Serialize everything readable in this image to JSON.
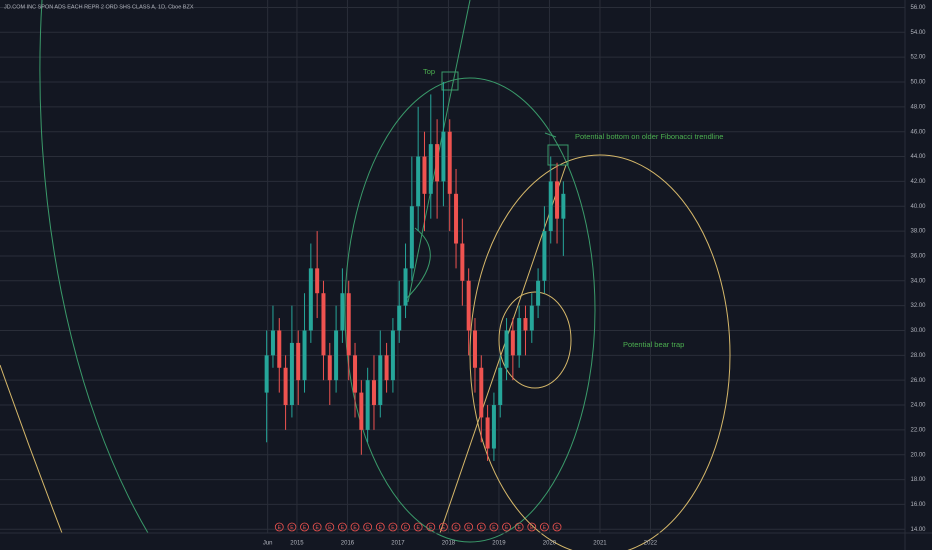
{
  "chart_data": {
    "type": "candlestick",
    "title": "JD.COM INC SPON ADS EACH REPR 2 ORD SHS CLASS A, 1D, Cboe BZX",
    "annotations": [
      "Top",
      "Potential bottom on older Fibonacci trendline",
      "Potential bear trap"
    ],
    "up_color": "#26a69a",
    "down_color": "#ef5350",
    "x": [
      2014.4,
      2014.525,
      2014.65,
      2014.775,
      2014.9,
      2015.025,
      2015.15,
      2015.275,
      2015.4,
      2015.525,
      2015.65,
      2015.775,
      2015.9,
      2016.025,
      2016.15,
      2016.275,
      2016.4,
      2016.525,
      2016.65,
      2016.775,
      2016.9,
      2017.025,
      2017.15,
      2017.275,
      2017.4,
      2017.525,
      2017.65,
      2017.775,
      2017.9,
      2018.025,
      2018.15,
      2018.275,
      2018.4,
      2018.525,
      2018.65,
      2018.775,
      2018.9,
      2019.025,
      2019.15,
      2019.275,
      2019.4,
      2019.525,
      2019.65,
      2019.775,
      2019.9,
      2020.025,
      2020.15,
      2020.275
    ],
    "open": [
      25,
      28,
      30,
      27,
      24,
      29,
      26,
      30,
      35,
      33,
      28,
      26,
      30,
      33,
      28,
      25,
      22,
      26,
      24,
      28,
      26,
      30,
      32,
      35,
      40,
      44,
      41,
      45,
      42,
      46,
      41,
      37,
      34,
      30,
      27,
      23,
      20.5,
      24,
      27,
      30,
      28,
      31,
      30,
      32,
      34,
      38,
      42,
      39
    ],
    "high": [
      30,
      32,
      31,
      28,
      32,
      30,
      33,
      37,
      38,
      34,
      29,
      32,
      35,
      34,
      29,
      26,
      27,
      28,
      30,
      29,
      31,
      34,
      37,
      44,
      48,
      46,
      49,
      47,
      50,
      47,
      43,
      39,
      35,
      31,
      28,
      24,
      25,
      28,
      31,
      31,
      32,
      32,
      33,
      35,
      40,
      44,
      43.5,
      42
    ],
    "low": [
      21,
      27,
      25,
      22,
      23,
      24,
      25,
      29,
      31,
      26,
      24,
      25,
      29,
      26,
      23,
      20,
      21,
      22,
      23,
      25,
      25,
      29,
      31,
      34,
      38,
      38,
      39,
      39,
      40,
      38,
      35,
      32,
      28,
      25,
      21,
      19.5,
      19.5,
      23,
      26,
      26,
      27,
      28,
      29,
      31,
      33,
      37,
      37,
      36
    ],
    "close": [
      28,
      30,
      27,
      24,
      29,
      26,
      30,
      35,
      33,
      28,
      26,
      30,
      33,
      28,
      25,
      22,
      26,
      24,
      28,
      26,
      30,
      32,
      35,
      40,
      44,
      41,
      45,
      42,
      46,
      41,
      37,
      34,
      30,
      27,
      23,
      20.5,
      24,
      27,
      30,
      28,
      31,
      30,
      32,
      34,
      38,
      42,
      39,
      41
    ],
    "event_label": "E",
    "events": [
      2014.65,
      2014.9,
      2015.15,
      2015.4,
      2015.65,
      2015.9,
      2016.15,
      2016.4,
      2016.65,
      2016.9,
      2017.15,
      2017.4,
      2017.65,
      2017.9,
      2018.15,
      2018.4,
      2018.65,
      2018.9,
      2019.15,
      2019.4,
      2019.65,
      2019.9,
      2020.15
    ],
    "xlim": [
      2009.12,
      2027.04
    ],
    "xticks": [
      {
        "value": 2014.42,
        "label": "Jun"
      },
      2015,
      2016,
      2017,
      2018,
      2019,
      2020,
      2021,
      2022
    ],
    "ylim": [
      13.7,
      56.6
    ],
    "yticks": [
      {
        "value": 14,
        "label": "14.00"
      },
      {
        "value": 16,
        "label": "16.00"
      },
      {
        "value": 18,
        "label": "18.00"
      },
      {
        "value": 20,
        "label": "20.00"
      },
      {
        "value": 22,
        "label": "22.00"
      },
      {
        "value": 24,
        "label": "24.00"
      },
      {
        "value": 26,
        "label": "26.00"
      },
      {
        "value": 28,
        "label": "28.00"
      },
      {
        "value": 30,
        "label": "30.00"
      },
      {
        "value": 32,
        "label": "32.00"
      },
      {
        "value": 34,
        "label": "34.00"
      },
      {
        "value": 36,
        "label": "36.00"
      },
      {
        "value": 38,
        "label": "38.00"
      },
      {
        "value": 40,
        "label": "40.00"
      },
      {
        "value": 42,
        "label": "42.00"
      },
      {
        "value": 44,
        "label": "44.00"
      },
      {
        "value": 46,
        "label": "46.00"
      },
      {
        "value": 48,
        "label": "48.00"
      },
      {
        "value": 50,
        "label": "50.00"
      },
      {
        "value": 52,
        "label": "52.00"
      },
      {
        "value": 54,
        "label": "54.00"
      },
      {
        "value": 56,
        "label": "56.00"
      }
    ],
    "grid": true
  }
}
